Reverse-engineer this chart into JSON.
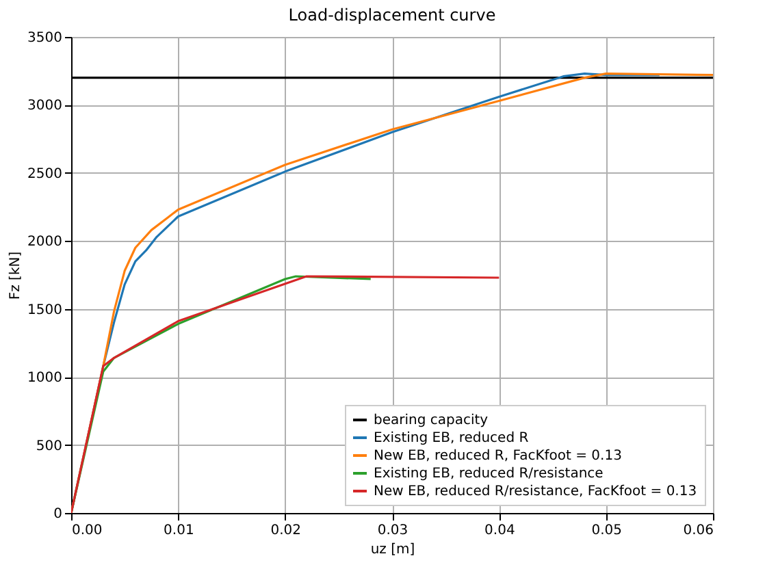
{
  "chart_data": {
    "type": "line",
    "title": "Load-displacement curve",
    "xlabel": "uz [m]",
    "ylabel": "Fz [kN]",
    "xlim": [
      0,
      0.06
    ],
    "xticks": [
      {
        "value": 0,
        "label": "0.00"
      },
      {
        "value": 0.01,
        "label": "0.01"
      },
      {
        "value": 0.02,
        "label": "0.02"
      },
      {
        "value": 0.03,
        "label": "0.03"
      },
      {
        "value": 0.04,
        "label": "0.04"
      },
      {
        "value": 0.05,
        "label": "0.05"
      },
      {
        "value": 0.06,
        "label": "0.06"
      }
    ],
    "ylim": [
      0,
      3500
    ],
    "yticks": [
      0,
      500,
      1000,
      1500,
      2000,
      2500,
      3000,
      3500
    ],
    "grid": true,
    "legend": "bottom right",
    "series": [
      {
        "name": "bearing capacity",
        "color": "#000000",
        "x": [
          0,
          0.06
        ],
        "values": [
          3200,
          3200
        ]
      },
      {
        "name": "Existing EB, reduced R",
        "color": "#1f77b4",
        "x": [
          0,
          0.003,
          0.004,
          0.005,
          0.006,
          0.007,
          0.008,
          0.01,
          0.02,
          0.03,
          0.04,
          0.046,
          0.048,
          0.05,
          0.055
        ],
        "values": [
          0,
          1080,
          1400,
          1680,
          1850,
          1930,
          2030,
          2180,
          2510,
          2800,
          3060,
          3210,
          3230,
          3220,
          3220
        ]
      },
      {
        "name": "New EB, reduced R, FacKfoot = 0.13",
        "color": "#ff7f0e",
        "x": [
          0,
          0.003,
          0.004,
          0.005,
          0.006,
          0.0075,
          0.009,
          0.01,
          0.02,
          0.03,
          0.04,
          0.048,
          0.05,
          0.06
        ],
        "values": [
          0,
          1080,
          1480,
          1780,
          1950,
          2080,
          2170,
          2230,
          2560,
          2820,
          3030,
          3200,
          3230,
          3220
        ]
      },
      {
        "name": "Existing EB, reduced R/resistance",
        "color": "#2ca02c",
        "x": [
          0,
          0.003,
          0.004,
          0.01,
          0.02,
          0.021,
          0.028
        ],
        "values": [
          0,
          1040,
          1140,
          1390,
          1720,
          1740,
          1720
        ]
      },
      {
        "name": "New EB, reduced R/resistance, FacKfoot = 0.13",
        "color": "#d62728",
        "x": [
          0,
          0.003,
          0.004,
          0.01,
          0.022,
          0.04
        ],
        "values": [
          0,
          1080,
          1140,
          1410,
          1740,
          1730
        ]
      }
    ]
  }
}
